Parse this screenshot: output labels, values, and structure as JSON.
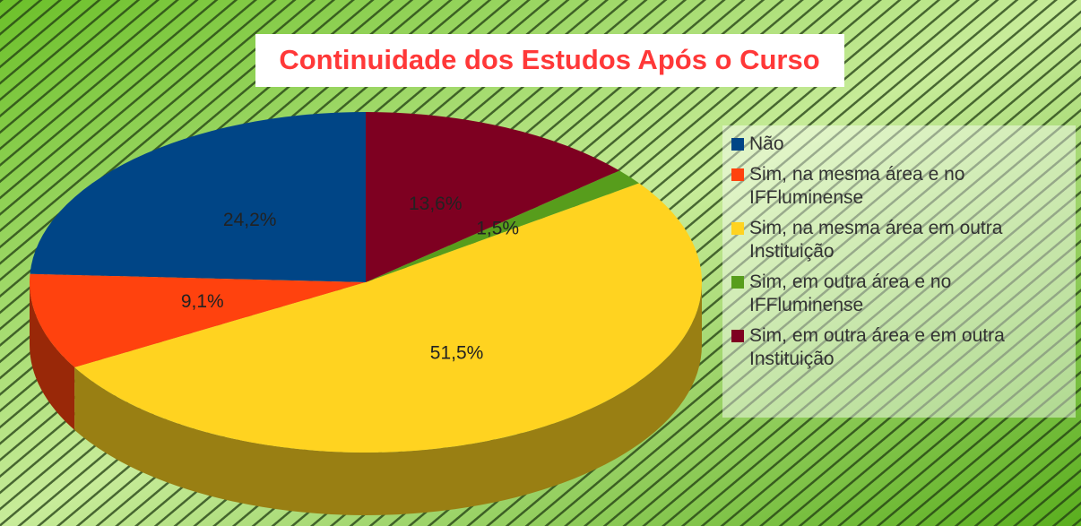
{
  "chart_data": {
    "type": "pie",
    "title": "Continuidade dos Estudos Após o Curso",
    "categories": [
      "Não",
      "Sim, na mesma área e no IFFluminense",
      "Sim, na mesma área em outra Instituição",
      "Sim, em outra área e no IFFluminense",
      "Sim, em outra área e em outra Instituição"
    ],
    "values": [
      24.2,
      9.1,
      51.5,
      1.5,
      13.6
    ],
    "value_labels": [
      "24,2%",
      "9,1%",
      "51,5%",
      "1,5%",
      "13,6%"
    ],
    "colors": [
      "#004586",
      "#ff420e",
      "#ffd320",
      "#579d1c",
      "#7e0021"
    ],
    "legend": "right"
  }
}
